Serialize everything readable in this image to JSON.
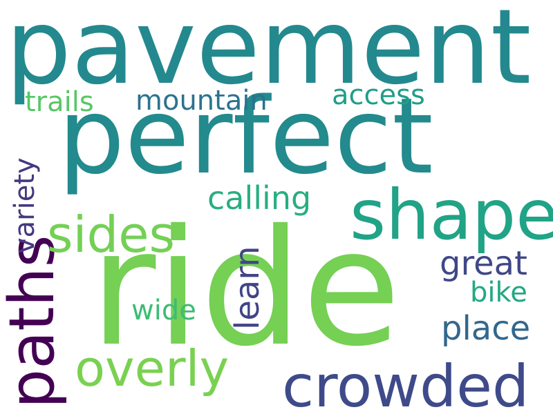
{
  "words": [
    {
      "text": "pavement",
      "color": "#23898e"
    },
    {
      "text": "perfect",
      "color": "#238a8d"
    },
    {
      "text": "ride",
      "color": "#75d054"
    },
    {
      "text": "shape",
      "color": "#20a386"
    },
    {
      "text": "paths",
      "color": "#440154"
    },
    {
      "text": "crowded",
      "color": "#3e4a89"
    },
    {
      "text": "sides",
      "color": "#74d055"
    },
    {
      "text": "overly",
      "color": "#7ad151"
    },
    {
      "text": "calling",
      "color": "#28ae80"
    },
    {
      "text": "learn",
      "color": "#414487"
    },
    {
      "text": "great",
      "color": "#3f4788"
    },
    {
      "text": "place",
      "color": "#31678e"
    },
    {
      "text": "bike",
      "color": "#22a884"
    },
    {
      "text": "wide",
      "color": "#3dbc74"
    },
    {
      "text": "mountain",
      "color": "#2c728e"
    },
    {
      "text": "trails",
      "color": "#58c765"
    },
    {
      "text": "access",
      "color": "#1f9e89"
    },
    {
      "text": "variety",
      "color": "#453781"
    }
  ]
}
